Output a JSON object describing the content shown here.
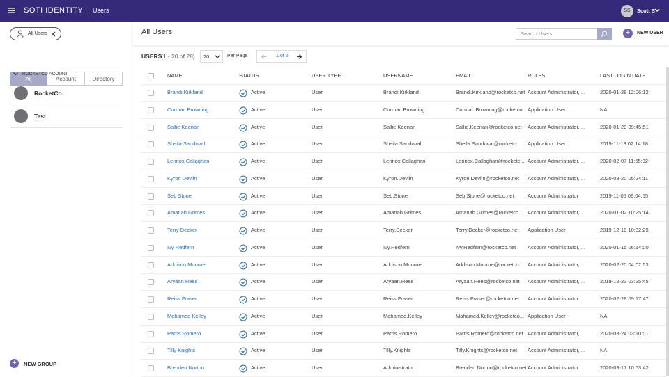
{
  "topbar": {
    "brand": "SOTI IDENTITY",
    "section": "Users",
    "avatar": "SS",
    "user": "Scott S"
  },
  "sidebar": {
    "filter": "All Users",
    "tabs": [
      "All",
      "Account",
      "Directory"
    ],
    "group_header": "ROCKETCO ACOUNT",
    "groups": [
      "RocketCo",
      "Test"
    ],
    "new_group": "NEW GROUP"
  },
  "main": {
    "title": "All Users",
    "search_placeholder": "Search Users",
    "new_user": "NEW USER",
    "count_label": "USERS",
    "count_range": "(1 - 20 of 28)",
    "per_page_value": "20",
    "per_page_label": "Per Page",
    "page": "1 of 2"
  },
  "table": {
    "columns": [
      "NAME",
      "STATUS",
      "USER TYPE",
      "USERNAME",
      "EMAIL",
      "ROLES",
      "LAST LOGIN DATE"
    ],
    "rows": [
      [
        "Brandi Kirkland",
        "Active",
        "User",
        "Brandi.Kirkland",
        "Brandi.Kirkland@rocketco.net",
        "Account Administrator, ...",
        "2020-01-28 12:06:12"
      ],
      [
        "Cormac Browning",
        "Active",
        "User",
        "Cormac.Browning",
        "Cormac.Browning@rocketco...",
        "Application User",
        "NA"
      ],
      [
        "Sallie Keenan",
        "Active",
        "User",
        "Sallie.Keenan",
        "Sallie.Keenan@rocketco.net",
        "Account Administrator, ...",
        "2020-01-29 09:45:51"
      ],
      [
        "Sheila Sandoval",
        "Active",
        "User",
        "Sheila.Sandoval",
        "Sheila.Sandoval@rocketco...",
        "Application User",
        "2019-11-13 02:14:18"
      ],
      [
        "Lennox Callaghan",
        "Active",
        "User",
        "Lennox.Callaghan",
        "Lennox.Callaghan@rocketc...",
        "Account Administrator, ...",
        "2020-02-07 11:55:32"
      ],
      [
        "Kyron Devlin",
        "Active",
        "User",
        "Kyron.Devlin",
        "Kyron.Devlin@rocketco.net",
        "Account Administrator, ...",
        "2020-03-20 05:24:11"
      ],
      [
        "Seb Stone",
        "Active",
        "User",
        "Seb.Stone",
        "Seb.Stone@rocketco.net",
        "Account Administrator",
        "2019-11-05 09:04:55"
      ],
      [
        "Amanah Grimes",
        "Active",
        "User",
        "Amanah.Grimes",
        "Amanah.Grimes@rocketco...",
        "Account Administrator, ...",
        "2020-01-02 10:25:14"
      ],
      [
        "Terry Decker",
        "Active",
        "User",
        "Terry.Decker",
        "Terry.Decker@rocketco.net",
        "Application User",
        "2019-12-19 10:32:29"
      ],
      [
        "Ivy Redfern",
        "Active",
        "User",
        "Ivy.Redfern",
        "Ivy.Redfern@rocketco.net",
        "Account Administrator, ...",
        "2020-01-15 06:14:00"
      ],
      [
        "Addison Monroe",
        "Active",
        "User",
        "Addison.Monroe",
        "Addison.Monroe@rocketco...",
        "Account Administrator, ...",
        "2020-02-20 04:02:53"
      ],
      [
        "Aryaan Rees",
        "Active",
        "User",
        "Aryaan.Rees",
        "Aryaan.Rees@rocketco.net",
        "Account Administrator, ...",
        "2019-12-23 03:25:45"
      ],
      [
        "Reiss Fraser",
        "Active",
        "User",
        "Reiss.Fraser",
        "Reiss.Fraser@rocketco.net",
        "Account Administrator",
        "2020-02-28 09:17:47"
      ],
      [
        "Mahamed Kelley",
        "Active",
        "User",
        "Mahamed.Kelley",
        "Mahamed.Kelley@rocketco...",
        "Application User",
        "NA"
      ],
      [
        "Parris Romero",
        "Active",
        "User",
        "Parris.Romero",
        "Parris.Romero@rocketco.net",
        "Account Administrator, ...",
        "2020-03-24 03:10:01"
      ],
      [
        "Tilly Knights",
        "Active",
        "User",
        "Tilly.Knights",
        "Tilly.Knights@rocketco.net",
        "Account Administrator, ...",
        "NA"
      ],
      [
        "Brenden Norton",
        "Active",
        "User",
        "Administrator",
        "Brenden.Norton@rocketco.net",
        "Account Administrator",
        "2020-03-17 10:53:42"
      ]
    ]
  }
}
